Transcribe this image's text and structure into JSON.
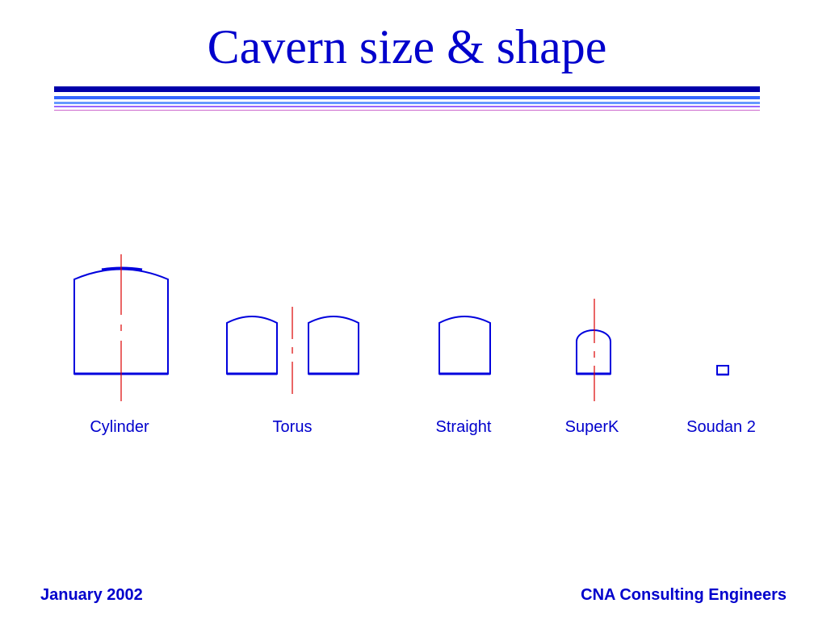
{
  "slide": {
    "title": "Cavern size & shape"
  },
  "title_rule_colors": [
    "#0000aa",
    "#3366ff",
    "#6699ff",
    "#9966ff",
    "#cc66cc"
  ],
  "colors": {
    "text": "#0000cc",
    "outline": "#0000dd",
    "centerline": "#dd0000"
  },
  "shapes": [
    {
      "id": "cylinder",
      "label": "Cylinder"
    },
    {
      "id": "torus",
      "label": "Torus"
    },
    {
      "id": "straight",
      "label": "Straight"
    },
    {
      "id": "superk",
      "label": "SuperK"
    },
    {
      "id": "soudan2",
      "label": "Soudan 2"
    }
  ],
  "footer": {
    "date": "January 2002",
    "company": "CNA Consulting Engineers"
  }
}
